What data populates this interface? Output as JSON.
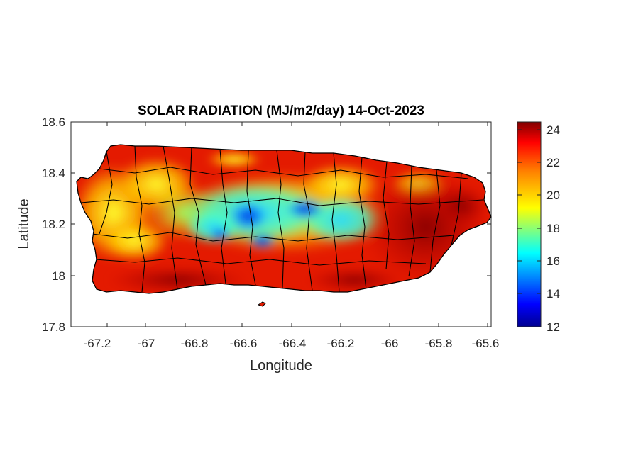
{
  "title": "SOLAR RADIATION (MJ/m2/day) 14-Oct-2023",
  "xlabel": "Longitude",
  "ylabel": "Latitude",
  "x_ticks": [
    "-67.2",
    "-67",
    "-66.8",
    "-66.6",
    "-66.4",
    "-66.2",
    "-66",
    "-65.8",
    "-65.6"
  ],
  "y_ticks": [
    "18.6",
    "18.4",
    "18.2",
    "18"
  ],
  "y_tick_bottom": "17.8",
  "colorbar_ticks": [
    "24",
    "22",
    "20",
    "18",
    "16",
    "14",
    "12"
  ],
  "colors": {
    "colormap": [
      "#00008f",
      "#0000ff",
      "#00ffff",
      "#ffff00",
      "#ff8000",
      "#ff0000",
      "#800000"
    ],
    "border": "#000000"
  },
  "chart_data": {
    "type": "heatmap",
    "title": "SOLAR RADIATION (MJ/m2/day) 14-Oct-2023",
    "xlabel": "Longitude",
    "ylabel": "Latitude",
    "xlim": [
      -67.3,
      -65.58
    ],
    "ylim": [
      17.8,
      18.6
    ],
    "colorbar_range": [
      12,
      24.5
    ],
    "region": "Puerto Rico",
    "zones": [
      {
        "area": "east (lon > -66.05)",
        "approx_value": 24
      },
      {
        "area": "south coast",
        "approx_value": 24
      },
      {
        "area": "north coast",
        "approx_value": 23
      },
      {
        "area": "west",
        "approx_value": 21
      },
      {
        "area": "central interior",
        "approx_value": 17
      },
      {
        "area": "central minimum patches",
        "approx_value": 14
      }
    ]
  }
}
